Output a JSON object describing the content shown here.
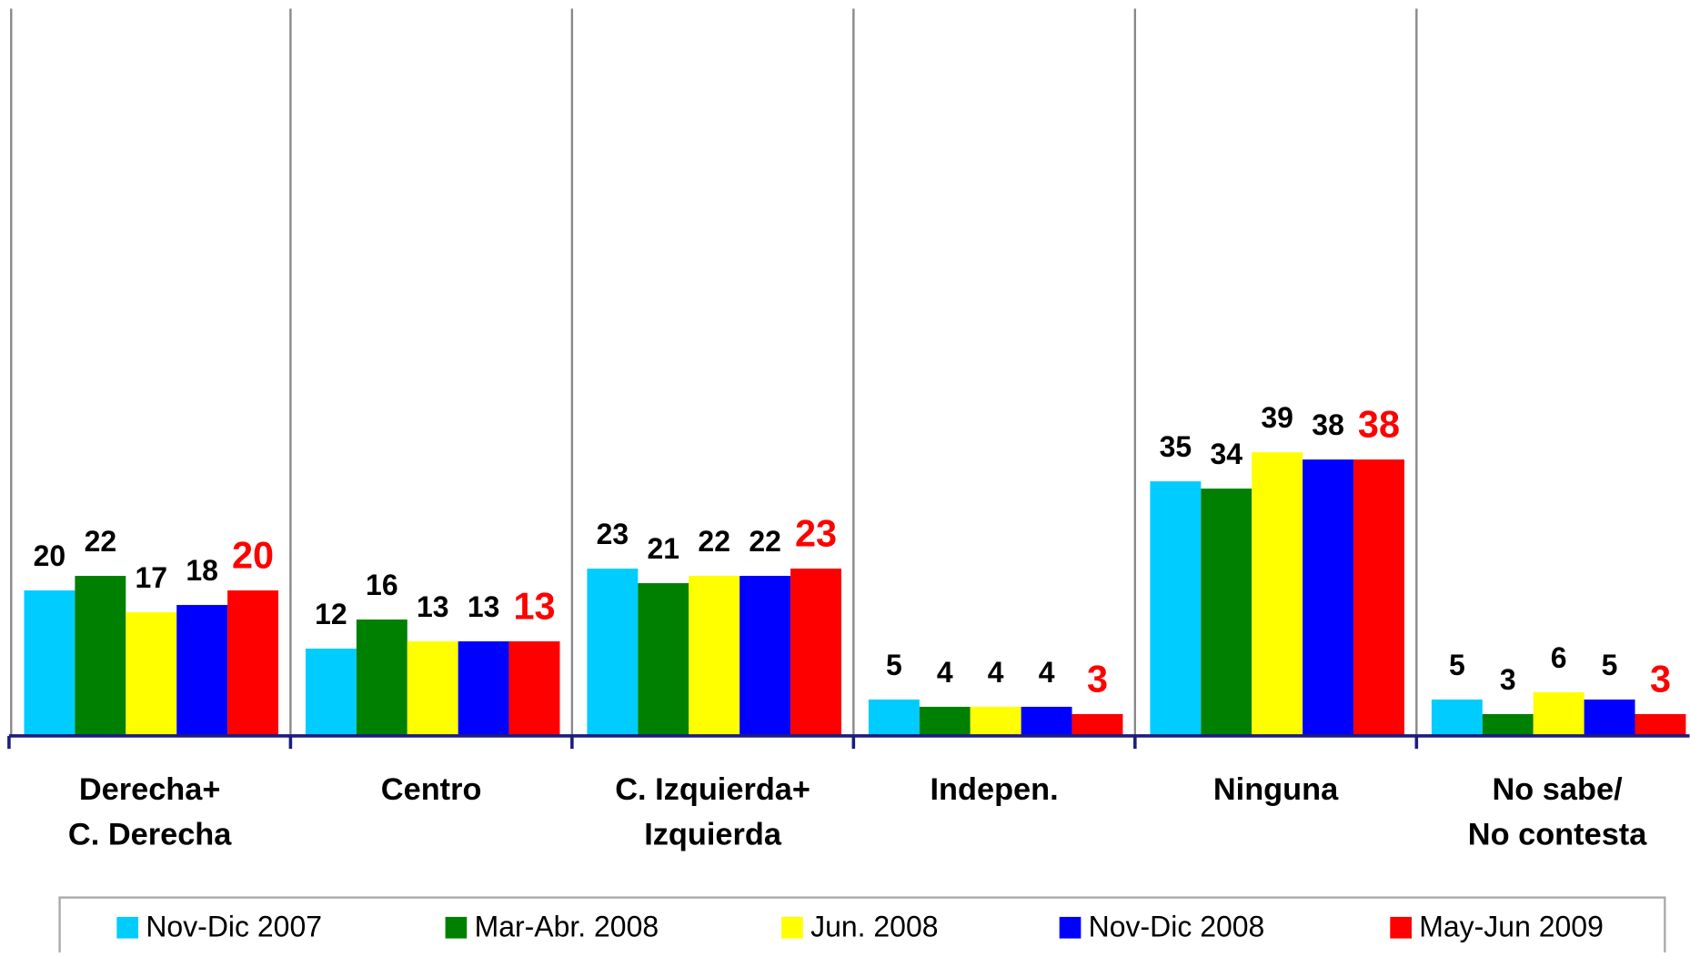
{
  "chart_data": {
    "type": "bar",
    "categories": [
      "Derecha+\nC. Derecha",
      "Centro",
      "C. Izquierda+\nIzquierda",
      "Indepen.",
      "Ninguna",
      "No sabe/\nNo contesta"
    ],
    "ylim": [
      0,
      100
    ],
    "series": [
      {
        "name": "Nov-Dic 2007",
        "color": "#00ccff",
        "label_color": "#000000",
        "values": [
          20,
          12,
          23,
          5,
          35,
          5
        ]
      },
      {
        "name": "Mar-Abr. 2008",
        "color": "#008000",
        "label_color": "#000000",
        "values": [
          22,
          16,
          21,
          4,
          34,
          3
        ]
      },
      {
        "name": "Jun. 2008",
        "color": "#ffff00",
        "label_color": "#000000",
        "values": [
          17,
          13,
          22,
          4,
          39,
          6
        ]
      },
      {
        "name": "Nov-Dic 2008",
        "color": "#0000ff",
        "label_color": "#000000",
        "values": [
          18,
          13,
          22,
          4,
          38,
          5
        ]
      },
      {
        "name": "May-Jun 2009",
        "color": "#ff0000",
        "label_color": "#ff0000",
        "values": [
          20,
          13,
          23,
          3,
          38,
          3
        ]
      }
    ],
    "legend": "bottom"
  }
}
